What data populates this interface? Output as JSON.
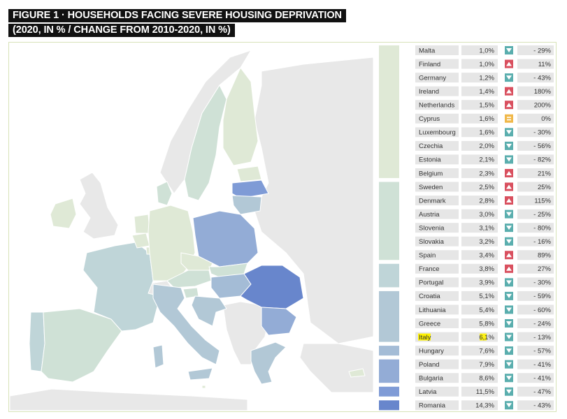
{
  "title_line1": "FIGURE 1 · HOUSEHOLDS FACING SEVERE HOUSING DEPRIVATION",
  "title_line2": "(2020, IN % / CHANGE FROM 2010-2020, IN %)",
  "colors": {
    "band1": "#dfe9d6",
    "band2": "#cfe1d6",
    "band3": "#bfd5d8",
    "band4": "#b2c8d6",
    "band5": "#a4bcd6",
    "band6": "#93acd6",
    "band7": "#7f9bd6",
    "band8": "#6886cc",
    "cell": "#e6e6e6",
    "up": "#d9505f",
    "down": "#5aaeae",
    "equal": "#f0b84a",
    "highlight": "#fff200",
    "frame": "#d7e3b8",
    "nodata": "#e8e8e8"
  },
  "chart_data": {
    "type": "table",
    "columns": [
      "country",
      "value_2020_pct",
      "change_2010_2020_pct"
    ],
    "rows": [
      {
        "country": "Malta",
        "value": "1,0%",
        "direction": "down",
        "change": "- 29%"
      },
      {
        "country": "Finland",
        "value": "1,0%",
        "direction": "up",
        "change": "11%"
      },
      {
        "country": "Germany",
        "value": "1,2%",
        "direction": "down",
        "change": "- 43%"
      },
      {
        "country": "Ireland",
        "value": "1,4%",
        "direction": "up",
        "change": "180%"
      },
      {
        "country": "Netherlands",
        "value": "1,5%",
        "direction": "up",
        "change": "200%"
      },
      {
        "country": "Cyprus",
        "value": "1,6%",
        "direction": "equal",
        "change": "0%"
      },
      {
        "country": "Luxembourg",
        "value": "1,6%",
        "direction": "down",
        "change": "- 30%"
      },
      {
        "country": "Czechia",
        "value": "2,0%",
        "direction": "down",
        "change": "- 56%"
      },
      {
        "country": "Estonia",
        "value": "2,1%",
        "direction": "down",
        "change": "- 82%"
      },
      {
        "country": "Belgium",
        "value": "2,3%",
        "direction": "up",
        "change": "21%"
      },
      {
        "country": "Sweden",
        "value": "2,5%",
        "direction": "up",
        "change": "25%"
      },
      {
        "country": "Denmark",
        "value": "2,8%",
        "direction": "up",
        "change": "115%"
      },
      {
        "country": "Austria",
        "value": "3,0%",
        "direction": "down",
        "change": "- 25%"
      },
      {
        "country": "Slovenia",
        "value": "3,1%",
        "direction": "down",
        "change": "- 80%"
      },
      {
        "country": "Slovakia",
        "value": "3,2%",
        "direction": "down",
        "change": "- 16%"
      },
      {
        "country": "Spain",
        "value": "3,4%",
        "direction": "up",
        "change": "89%"
      },
      {
        "country": "France",
        "value": "3,8%",
        "direction": "up",
        "change": "27%"
      },
      {
        "country": "Portugal",
        "value": "3,9%",
        "direction": "down",
        "change": "- 30%"
      },
      {
        "country": "Croatia",
        "value": "5,1%",
        "direction": "down",
        "change": "- 59%"
      },
      {
        "country": "Lithuania",
        "value": "5,4%",
        "direction": "down",
        "change": "- 60%"
      },
      {
        "country": "Greece",
        "value": "5,8%",
        "direction": "down",
        "change": "- 24%"
      },
      {
        "country": "Italy",
        "value": "6,1%",
        "direction": "down",
        "change": "- 13%",
        "highlighted": true
      },
      {
        "country": "Hungary",
        "value": "7,6%",
        "direction": "down",
        "change": "- 57%"
      },
      {
        "country": "Poland",
        "value": "7,9%",
        "direction": "down",
        "change": "- 41%"
      },
      {
        "country": "Bulgaria",
        "value": "8,6%",
        "direction": "down",
        "change": "- 41%"
      },
      {
        "country": "Latvia",
        "value": "11,5%",
        "direction": "down",
        "change": "- 47%"
      },
      {
        "country": "Romania",
        "value": "14,3%",
        "direction": "down",
        "change": "- 43%"
      }
    ],
    "legend_bands": [
      {
        "first_row": 0,
        "last_row": 9,
        "color_key": "band1"
      },
      {
        "first_row": 10,
        "last_row": 15,
        "color_key": "band2"
      },
      {
        "first_row": 16,
        "last_row": 17,
        "color_key": "band3"
      },
      {
        "first_row": 18,
        "last_row": 21,
        "color_key": "band4"
      },
      {
        "first_row": 22,
        "last_row": 22,
        "color_key": "band5"
      },
      {
        "first_row": 23,
        "last_row": 24,
        "color_key": "band6"
      },
      {
        "first_row": 25,
        "last_row": 25,
        "color_key": "band7"
      },
      {
        "first_row": 26,
        "last_row": 26,
        "color_key": "band8"
      }
    ]
  }
}
